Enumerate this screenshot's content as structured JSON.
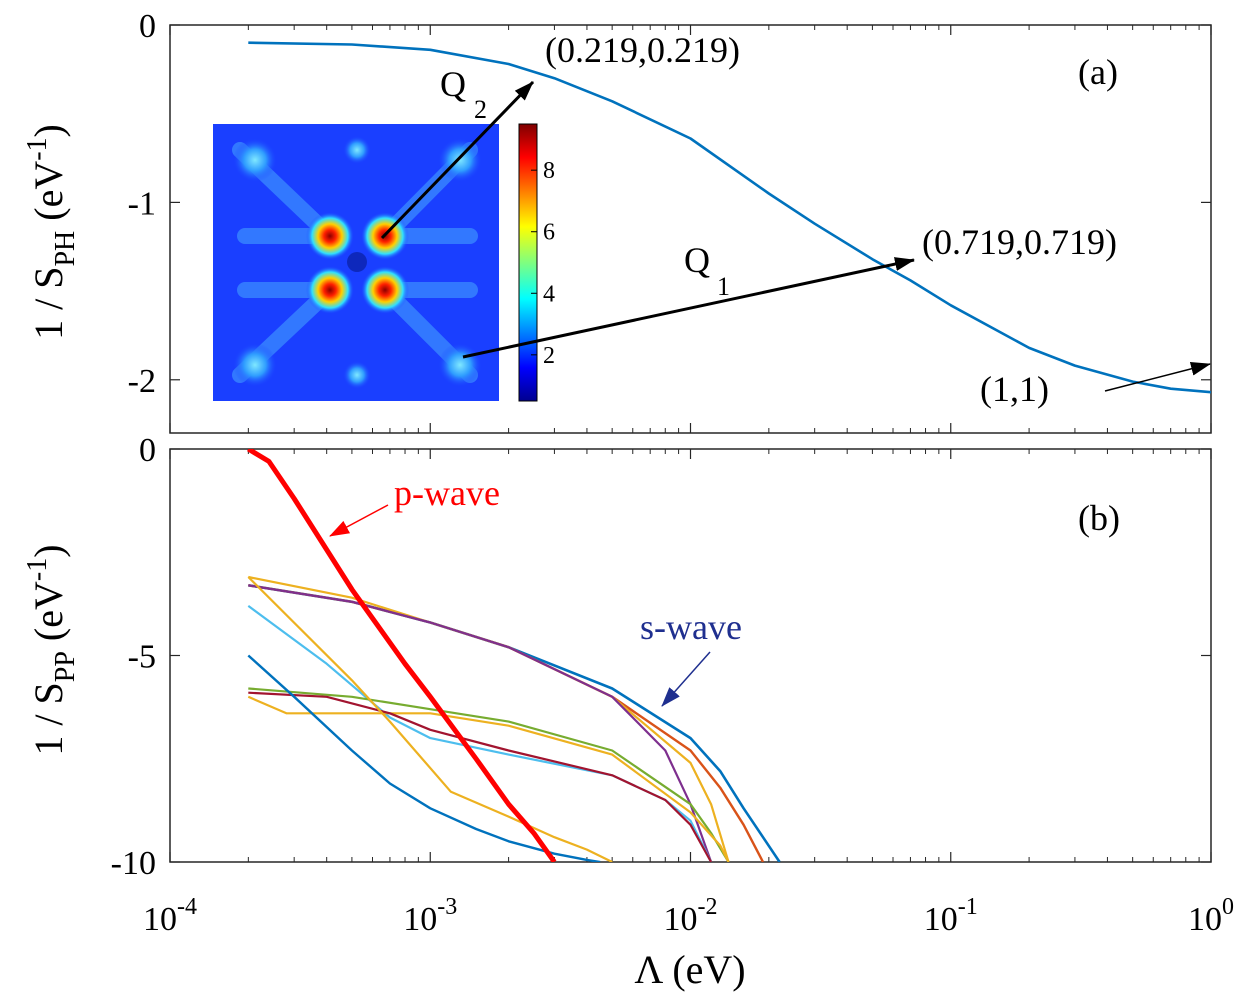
{
  "chart_data": [
    {
      "panel": "(a)",
      "type": "line",
      "x_scale": "log",
      "xlim": [
        0.0001,
        1
      ],
      "ylim": [
        -2.3,
        0
      ],
      "y_ticks": [
        0,
        -1,
        -2
      ],
      "y_tick_labels": [
        "0",
        "-1",
        "-2"
      ],
      "ylabel_main": "1 / S",
      "ylabel_sub": "PH",
      "ylabel_unit": "(eV",
      "ylabel_exp": "-1",
      "ylabel_close": ")",
      "series": [
        {
          "color": "#0072BD",
          "x": [
            0.0002,
            0.0005,
            0.001,
            0.002,
            0.003,
            0.005,
            0.01,
            0.02,
            0.03,
            0.05,
            0.07,
            0.1,
            0.2,
            0.3,
            0.5,
            0.7,
            1.0
          ],
          "y": [
            -0.1,
            -0.11,
            -0.14,
            -0.22,
            -0.3,
            -0.43,
            -0.64,
            -0.95,
            -1.12,
            -1.32,
            -1.44,
            -1.58,
            -1.82,
            -1.92,
            -2.01,
            -2.05,
            -2.07
          ]
        }
      ],
      "annotations": [
        {
          "label": "(0.219,0.219)"
        },
        {
          "label": "(0.719,0.719)"
        },
        {
          "label": "(1,1)"
        },
        {
          "label_main": "Q",
          "label_sub": "1"
        },
        {
          "label_main": "Q",
          "label_sub": "2"
        }
      ],
      "inset": {
        "type": "heatmap",
        "colormap": "jet",
        "colorbar_ticks": [
          "2",
          "4",
          "6",
          "8"
        ],
        "colorbar_range": [
          0.5,
          9.5
        ]
      }
    },
    {
      "panel": "(b)",
      "type": "line",
      "x_scale": "log",
      "xlim": [
        0.0001,
        1
      ],
      "ylim": [
        -10,
        0
      ],
      "y_ticks": [
        0,
        -5,
        -10
      ],
      "y_tick_labels": [
        "0",
        "-5",
        "-10"
      ],
      "x_tick_bases": [
        "10",
        "10",
        "10",
        "10",
        "10"
      ],
      "x_tick_exps": [
        "-4",
        "-3",
        "-2",
        "-1",
        "0"
      ],
      "xlabel": "Λ (eV)",
      "ylabel_main": "1 / S",
      "ylabel_sub": "PP",
      "ylabel_unit": "(eV",
      "ylabel_exp": "-1",
      "ylabel_close": ")",
      "series": [
        {
          "color": "#0072BD",
          "width": 2.6,
          "x": [
            0.0002,
            0.0005,
            0.001,
            0.002,
            0.005,
            0.01,
            0.013,
            0.016,
            0.019,
            0.022
          ],
          "y": [
            -3.3,
            -3.7,
            -4.2,
            -4.8,
            -5.8,
            -7.0,
            -7.8,
            -8.7,
            -9.4,
            -10
          ]
        },
        {
          "color": "#D95319",
          "width": 2.4,
          "x": [
            0.0002,
            0.0005,
            0.001,
            0.002,
            0.005,
            0.01,
            0.013,
            0.016,
            0.019
          ],
          "y": [
            -3.3,
            -3.7,
            -4.2,
            -4.8,
            -6.0,
            -7.3,
            -8.2,
            -9.1,
            -10
          ]
        },
        {
          "color": "#EDB120",
          "width": 2.2,
          "x": [
            0.0002,
            0.0005,
            0.001,
            0.002,
            0.005,
            0.01,
            0.012,
            0.014
          ],
          "y": [
            -3.1,
            -3.6,
            -4.2,
            -4.8,
            -6.0,
            -7.6,
            -8.6,
            -10
          ]
        },
        {
          "color": "#7E2F8E",
          "width": 2.2,
          "x": [
            0.0002,
            0.0005,
            0.001,
            0.002,
            0.005,
            0.008,
            0.01,
            0.012
          ],
          "y": [
            -3.3,
            -3.7,
            -4.2,
            -4.8,
            -6.0,
            -7.3,
            -8.6,
            -10
          ]
        },
        {
          "color": "#4DBEEE",
          "width": 2.2,
          "x": [
            0.0002,
            0.0004,
            0.0007,
            0.001,
            0.002,
            0.005,
            0.008,
            0.01,
            0.012
          ],
          "y": [
            -3.8,
            -5.2,
            -6.5,
            -7.0,
            -7.4,
            -7.9,
            -8.5,
            -9.0,
            -10
          ]
        },
        {
          "color": "#77AC30",
          "width": 2.2,
          "x": [
            0.0002,
            0.0005,
            0.001,
            0.002,
            0.005,
            0.01,
            0.012,
            0.014
          ],
          "y": [
            -5.8,
            -6.0,
            -6.3,
            -6.6,
            -7.3,
            -8.6,
            -9.3,
            -10
          ]
        },
        {
          "color": "#EDB120",
          "width": 2.2,
          "x": [
            0.0002,
            0.00028,
            0.0005,
            0.001,
            0.002,
            0.005,
            0.01,
            0.013,
            0.014
          ],
          "y": [
            -6.0,
            -6.4,
            -6.4,
            -6.4,
            -6.7,
            -7.4,
            -8.8,
            -9.6,
            -10
          ]
        },
        {
          "color": "#A2142F",
          "width": 2.2,
          "x": [
            0.0002,
            0.0004,
            0.0007,
            0.001,
            0.002,
            0.005,
            0.008,
            0.01,
            0.012
          ],
          "y": [
            -5.9,
            -6.0,
            -6.4,
            -6.8,
            -7.3,
            -7.9,
            -8.5,
            -9.1,
            -10
          ]
        },
        {
          "color": "#EDB120",
          "width": 2.2,
          "x": [
            0.0002,
            0.0005,
            0.0007,
            0.0012,
            0.002,
            0.003,
            0.004,
            0.005
          ],
          "y": [
            -3.1,
            -5.6,
            -6.6,
            -8.3,
            -8.9,
            -9.4,
            -9.7,
            -10
          ]
        },
        {
          "color": "#0072BD",
          "width": 2.4,
          "x": [
            0.0002,
            0.0003,
            0.0005,
            0.0007,
            0.001,
            0.0015,
            0.002,
            0.003,
            0.004,
            0.0045
          ],
          "y": [
            -5.0,
            -6.0,
            -7.3,
            -8.1,
            -8.7,
            -9.2,
            -9.5,
            -9.8,
            -9.95,
            -10
          ]
        },
        {
          "color": "#FF0000",
          "width": 5,
          "x": [
            0.0002,
            0.00024,
            0.0003,
            0.0005,
            0.0008,
            0.001,
            0.0015,
            0.002,
            0.0025,
            0.003
          ],
          "y": [
            0,
            -0.3,
            -1.2,
            -3.4,
            -5.2,
            -6.0,
            -7.5,
            -8.6,
            -9.3,
            -10
          ]
        }
      ],
      "annotations": [
        {
          "label": "p-wave",
          "color": "#FF0000"
        },
        {
          "label": "s-wave",
          "color": "#1F2F8F"
        }
      ]
    }
  ]
}
